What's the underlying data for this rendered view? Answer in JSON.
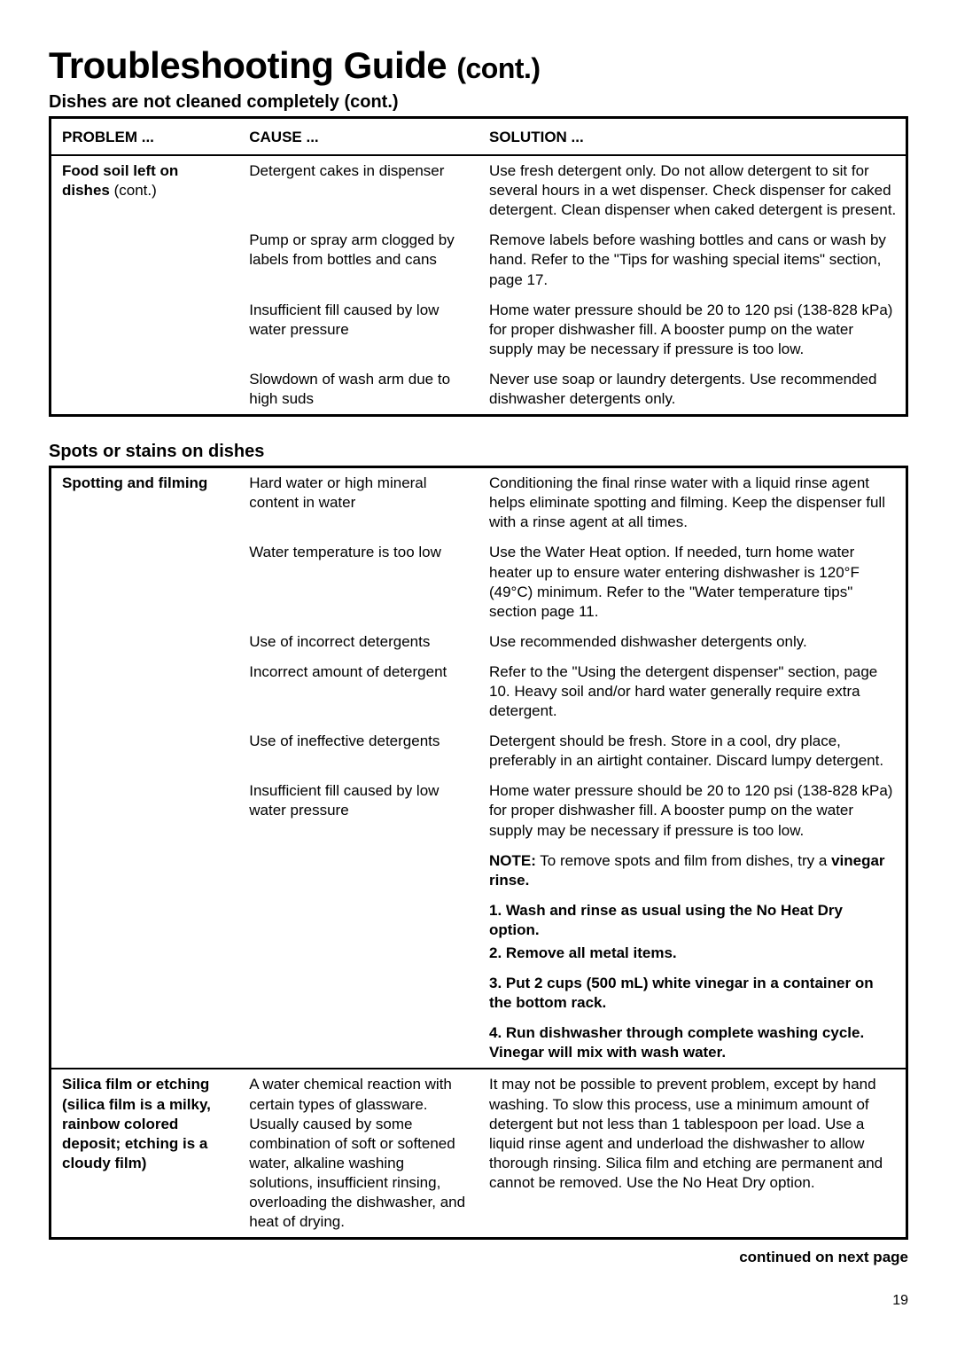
{
  "page": {
    "title_main": "Troubleshooting Guide",
    "title_cont": "(cont.)",
    "subtitle": "Dishes are not cleaned completely (cont.)",
    "section2_title": "Spots or stains on dishes",
    "continued_text": "continued on next page",
    "page_number": "19"
  },
  "headers": {
    "problem": "PROBLEM ...",
    "cause": "CAUSE ...",
    "solution": "SOLUTION ..."
  },
  "table1": {
    "problem": "Food soil left on dishes",
    "problem_suffix": " (cont.)",
    "rows": [
      {
        "cause": "Detergent cakes in dispenser",
        "solution": "Use fresh detergent only. Do not allow detergent to sit for several hours in a wet dispenser. Check dispenser for caked detergent. Clean dispenser when caked detergent is present."
      },
      {
        "cause": "Pump or spray arm clogged by labels from bottles and cans",
        "solution": "Remove labels before washing bottles and cans or wash by hand. Refer to the \"Tips for washing special items\" section, page 17."
      },
      {
        "cause": "Insufficient fill caused by low water pressure",
        "solution": "Home water pressure should be 20 to 120 psi (138-828 kPa) for proper dishwasher fill. A booster pump on the water supply may be necessary if pressure is too low."
      },
      {
        "cause": "Slowdown of wash arm due to high suds",
        "solution": "Never use soap or laundry detergents. Use recommended dishwasher detergents only."
      }
    ]
  },
  "table2": {
    "problem1": "Spotting and filming",
    "rows1": [
      {
        "cause": "Hard water or high mineral content in water",
        "solution": "Conditioning the final rinse water with a liquid rinse agent helps eliminate spotting and filming. Keep the dispenser full with a rinse agent at all times."
      },
      {
        "cause": "Water temperature is too low",
        "solution": "Use the Water Heat option. If needed, turn home water heater up to ensure water entering dishwasher is 120°F (49°C) minimum. Refer to the \"Water temperature tips\" section page 11."
      },
      {
        "cause": "Use of incorrect detergents",
        "solution": "Use recommended dishwasher detergents only."
      },
      {
        "cause": "Incorrect amount of detergent",
        "solution": "Refer to the \"Using the detergent dispenser\" section, page 10. Heavy soil and/or hard water generally require extra detergent."
      },
      {
        "cause": "Use of ineffective detergents",
        "solution": "Detergent should be fresh. Store in a cool, dry place, preferably in an airtight container. Discard lumpy detergent."
      },
      {
        "cause": "Insufficient fill caused by low water pressure",
        "solution": "Home water pressure should be 20 to 120 psi (138-828 kPa) for proper dishwasher fill. A booster pump on the water supply may be necessary if pressure is too low."
      }
    ],
    "note_label": "NOTE:",
    "note_text": " To remove spots and film from dishes, try a ",
    "note_bold2": "vinegar rinse.",
    "steps": [
      "1. Wash and rinse as usual using the No Heat Dry option.",
      "2. Remove all metal items.",
      "3. Put 2 cups (500 mL) white vinegar in a container on the bottom rack.",
      "4. Run dishwasher through complete washing cycle. Vinegar will mix with wash water."
    ],
    "problem2_lines": "Silica film or etching (silica film is a milky, rainbow colored deposit; etching is a cloudy film)",
    "cause2": "A water chemical reaction with certain types of glassware. Usually caused by some combination of soft or softened water, alkaline washing solutions, insufficient rinsing, overloading the dishwasher, and heat of drying.",
    "solution2": "It may not be possible to prevent problem, except by hand washing. To slow this process, use a minimum amount of detergent but not less than 1 tablespoon per load. Use a liquid rinse agent and underload the dishwasher to allow thorough rinsing. Silica film and etching are permanent and cannot be removed. Use the No Heat Dry option."
  },
  "style": {
    "border_color": "#000000",
    "background": "#ffffff",
    "font_family": "Arial, Helvetica, sans-serif"
  }
}
